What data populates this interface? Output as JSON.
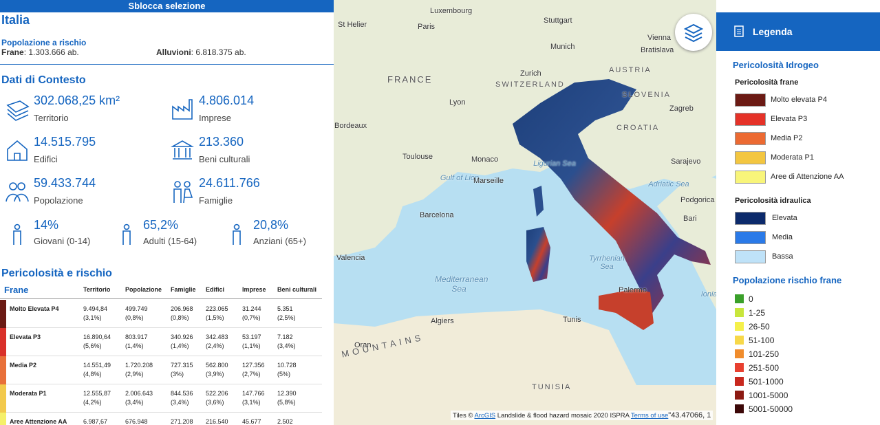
{
  "header": {
    "button": "Sblocca selezione",
    "region": "Italia"
  },
  "population_risk": {
    "title": "Popolazione a rischio",
    "items": [
      {
        "label": "Frane",
        "value": ": 1.303.666 ab."
      },
      {
        "label": "Alluvioni",
        "value": ": 6.818.375 ab."
      }
    ]
  },
  "context": {
    "title": "Dati di Contesto",
    "items": [
      {
        "value": "302.068,25 km²",
        "label": "Territorio"
      },
      {
        "value": "4.806.014",
        "label": "Imprese"
      },
      {
        "value": "14.515.795",
        "label": "Edifici"
      },
      {
        "value": "213.360",
        "label": "Beni culturali"
      },
      {
        "value": "59.433.744",
        "label": "Popolazione"
      },
      {
        "value": "24.611.766",
        "label": "Famiglie"
      }
    ],
    "ages": [
      {
        "value": "14%",
        "label": "Giovani (0-14)"
      },
      {
        "value": "65,2%",
        "label": "Adulti (15-64)"
      },
      {
        "value": "20,8%",
        "label": "Anziani (65+)"
      }
    ]
  },
  "risk": {
    "title": "Pericolosità e rischio",
    "columns": [
      "Frane",
      "Territorio",
      "Popolazione",
      "Famiglie",
      "Edifici",
      "Imprese",
      "Beni culturali"
    ],
    "rows": [
      {
        "name": "Molto Elevata P4",
        "color": "#6b1a14",
        "cells": [
          [
            "9.494,84",
            "(3,1%)"
          ],
          [
            "499.749",
            "(0,8%)"
          ],
          [
            "206.968",
            "(0,8%)"
          ],
          [
            "223.065",
            "(1,5%)"
          ],
          [
            "31.244",
            "(0,7%)"
          ],
          [
            "5.351",
            "(2,5%)"
          ]
        ]
      },
      {
        "name": "Elevata P3",
        "color": "#d9302a",
        "cells": [
          [
            "16.890,64",
            "(5,6%)"
          ],
          [
            "803.917",
            "(1,4%)"
          ],
          [
            "340.926",
            "(1,4%)"
          ],
          [
            "342.483",
            "(2,4%)"
          ],
          [
            "53.197",
            "(1,1%)"
          ],
          [
            "7.182",
            "(3,4%)"
          ]
        ]
      },
      {
        "name": "Media P2",
        "color": "#e8703a",
        "cells": [
          [
            "14.551,49",
            "(4,8%)"
          ],
          [
            "1.720.208",
            "(2,9%)"
          ],
          [
            "727.315",
            "(3%)"
          ],
          [
            "562.800",
            "(3,9%)"
          ],
          [
            "127.356",
            "(2,7%)"
          ],
          [
            "10.728",
            "(5%)"
          ]
        ]
      },
      {
        "name": "Moderata P1",
        "color": "#f2c94c",
        "cells": [
          [
            "12.555,87",
            "(4,2%)"
          ],
          [
            "2.006.643",
            "(3,4%)"
          ],
          [
            "844.536",
            "(3,4%)"
          ],
          [
            "522.206",
            "(3,6%)"
          ],
          [
            "147.766",
            "(3,1%)"
          ],
          [
            "12.390",
            "(5,8%)"
          ]
        ]
      },
      {
        "name": "Aree Attenzione AA",
        "color": "#f5f06a",
        "cells": [
          [
            "6.987,67"
          ],
          [
            "676.948"
          ],
          [
            "271.208"
          ],
          [
            "216.540"
          ],
          [
            "45.677"
          ],
          [
            "2.502"
          ]
        ]
      }
    ]
  },
  "map": {
    "labels": [
      "Luxembourg",
      "Stuttgart",
      "St Helier",
      "Paris",
      "Munich",
      "Vienna",
      "Bratislava",
      "FRANCE",
      "AUSTRIA",
      "Zurich",
      "SWITZERLAND",
      "SLOVENIA",
      "Lyon",
      "Zagreb",
      "Bordeaux",
      "CROATIA",
      "Toulouse",
      "Monaco",
      "Ligurian Sea",
      "Sarajevo",
      "Gulf of Lion",
      "Marseille",
      "Adriatic Sea",
      "Podgorica",
      "Barcelona",
      "Bari",
      "Valencia",
      "Tyrrhenian Sea",
      "Mediterranean Sea",
      "Palermo",
      "Ionian Sea",
      "Algiers",
      "Tunis",
      "Oran",
      "MOUNTAINS",
      "TUNISIA"
    ],
    "attribution": {
      "prefix": "Tiles © ",
      "link": "ArcGIS",
      "text": " Landslide & flood hazard mosaic 2020 ISPRA ",
      "terms": "Terms of use",
      "coords": "\"43.47066, 1"
    }
  },
  "legend": {
    "title": "Legenda",
    "section": "Pericolosità Idrogeo",
    "groups": [
      {
        "title": "Pericolosità frane",
        "items": [
          {
            "label": "Molto elevata P4",
            "color": "#6b1a14"
          },
          {
            "label": "Elevata P3",
            "color": "#e53228"
          },
          {
            "label": "Media P2",
            "color": "#ec6a32"
          },
          {
            "label": "Moderata P1",
            "color": "#f3c640"
          },
          {
            "label": "Aree di Attenzione AA",
            "color": "#f8f57a"
          }
        ]
      },
      {
        "title": "Pericolosità idraulica",
        "items": [
          {
            "label": "Elevata",
            "color": "#0c2a6b"
          },
          {
            "label": "Media",
            "color": "#2a7ae8"
          },
          {
            "label": "Bassa",
            "color": "#bfe2f8"
          }
        ]
      }
    ],
    "population": {
      "title": "Popolazione rischio frane",
      "items": [
        {
          "label": "0",
          "color": "#3aa02a"
        },
        {
          "label": "1-25",
          "color": "#c8e63c"
        },
        {
          "label": "26-50",
          "color": "#f5f04a"
        },
        {
          "label": "51-100",
          "color": "#f7d848"
        },
        {
          "label": "101-250",
          "color": "#f08c2c"
        },
        {
          "label": "251-500",
          "color": "#e84030"
        },
        {
          "label": "501-1000",
          "color": "#c8281e"
        },
        {
          "label": "1001-5000",
          "color": "#8c1a12"
        },
        {
          "label": "5001-50000",
          "color": "#3c0808"
        }
      ]
    }
  }
}
